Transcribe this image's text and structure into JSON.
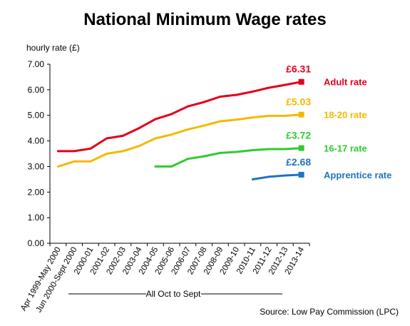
{
  "chart_data": {
    "type": "line",
    "title": "National Minimum Wage rates",
    "ylabel": "hourly rate (£)",
    "ylim": [
      0,
      7
    ],
    "y_ticks": [
      "0.00",
      "1.00",
      "2.00",
      "3.00",
      "4.00",
      "5.00",
      "6.00",
      "7.00"
    ],
    "categories": [
      "Apr 1999-May 2000",
      "Jun 2000-Sept 2000",
      "2000-01",
      "2001-02",
      "2002-03",
      "2003-04",
      "2004-05",
      "2005-06",
      "2006-07",
      "2007-08",
      "2008-09",
      "2009-10",
      "2010-11",
      "2011-12",
      "2012-13",
      "2013-14"
    ],
    "x_group_label": "All Oct to Sept",
    "grid": false,
    "series": [
      {
        "name": "Adult rate",
        "color": "#e3001b",
        "final_label": "£6.31",
        "values": [
          3.6,
          3.6,
          3.7,
          4.1,
          4.2,
          4.5,
          4.85,
          5.05,
          5.35,
          5.52,
          5.73,
          5.8,
          5.93,
          6.08,
          6.19,
          6.31
        ]
      },
      {
        "name": "18-20 rate",
        "color": "#f5b800",
        "final_label": "£5.03",
        "values": [
          3.0,
          3.2,
          3.2,
          3.5,
          3.6,
          3.8,
          4.1,
          4.25,
          4.45,
          4.6,
          4.77,
          4.83,
          4.92,
          4.98,
          4.98,
          5.03
        ]
      },
      {
        "name": "16-17 rate",
        "color": "#2ecc2e",
        "final_label": "£3.72",
        "values": [
          null,
          null,
          null,
          null,
          null,
          null,
          3.0,
          3.0,
          3.3,
          3.4,
          3.53,
          3.57,
          3.64,
          3.68,
          3.68,
          3.72
        ]
      },
      {
        "name": "Apprentice rate",
        "color": "#1f73c1",
        "final_label": "£2.68",
        "values": [
          null,
          null,
          null,
          null,
          null,
          null,
          null,
          null,
          null,
          null,
          null,
          null,
          2.5,
          2.6,
          2.65,
          2.68
        ]
      }
    ]
  },
  "source": "Source: Low Pay Commission (LPC)"
}
